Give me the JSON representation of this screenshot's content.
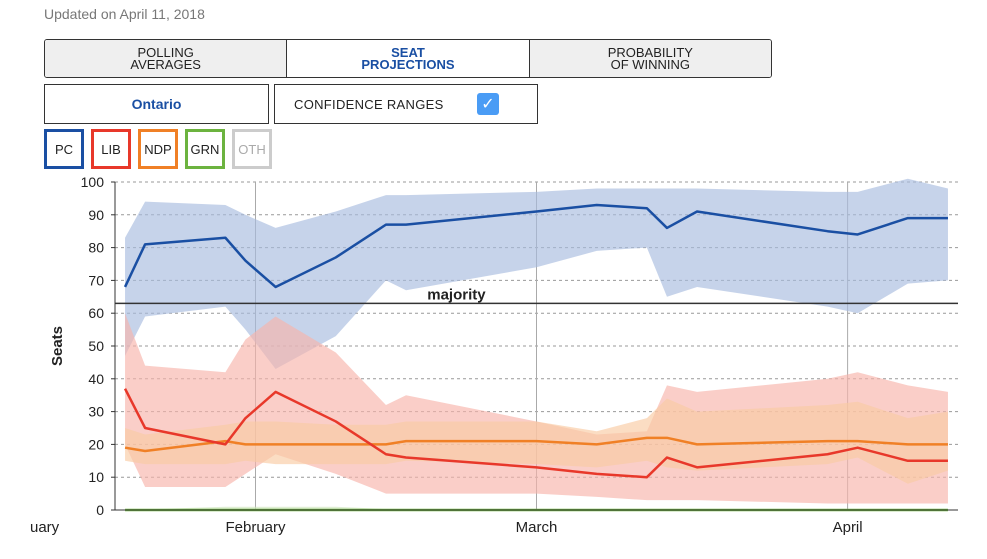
{
  "header": {
    "updated": "Updated on April 11, 2018"
  },
  "tabs": [
    {
      "label": "POLLING\nAVERAGES",
      "active": false
    },
    {
      "label": "SEAT\nPROJECTIONS",
      "active": true
    },
    {
      "label": "PROBABILITY\nOF WINNING",
      "active": false
    }
  ],
  "controls": {
    "region": "Ontario",
    "confidence_label": "CONFIDENCE RANGES",
    "confidence_checked": true
  },
  "parties": [
    {
      "code": "PC",
      "color": "#1a4fa3",
      "enabled": true
    },
    {
      "code": "LIB",
      "color": "#e8382a",
      "enabled": true
    },
    {
      "code": "NDP",
      "color": "#f08026",
      "enabled": true
    },
    {
      "code": "GRN",
      "color": "#6cb33f",
      "enabled": true
    },
    {
      "code": "OTH",
      "color": "#cccccc",
      "enabled": false
    }
  ],
  "chart_data": {
    "type": "line",
    "ylabel": "Seats",
    "ylim": [
      0,
      100
    ],
    "yticks": [
      0,
      10,
      20,
      30,
      40,
      50,
      60,
      70,
      80,
      90,
      100
    ],
    "xlim": [
      "2018-01-18",
      "2018-04-12"
    ],
    "month_labels": [
      {
        "label": "uary",
        "date": "2018-01-18"
      },
      {
        "label": "February",
        "date": "2018-02-01"
      },
      {
        "label": "March",
        "date": "2018-03-01"
      },
      {
        "label": "April",
        "date": "2018-04-01"
      }
    ],
    "reference_line": {
      "label": "majority",
      "value": 63
    },
    "series": [
      {
        "name": "PC",
        "color": "#1a4fa3",
        "band_color": "#a7bcdf",
        "x": [
          "2018-01-19",
          "2018-01-21",
          "2018-01-29",
          "2018-01-31",
          "2018-02-03",
          "2018-02-09",
          "2018-02-14",
          "2018-02-16",
          "2018-03-01",
          "2018-03-07",
          "2018-03-12",
          "2018-03-14",
          "2018-03-17",
          "2018-03-30",
          "2018-04-02",
          "2018-04-07",
          "2018-04-11"
        ],
        "y": [
          68,
          81,
          83,
          76,
          68,
          77,
          87,
          87,
          91,
          93,
          92,
          86,
          91,
          85,
          84,
          89,
          89
        ],
        "low": [
          47,
          59,
          62,
          55,
          43,
          53,
          70,
          67,
          74,
          79,
          80,
          65,
          68,
          62,
          60,
          69,
          70
        ],
        "high": [
          83,
          94,
          93,
          90,
          86,
          91,
          96,
          96,
          97,
          98,
          98,
          98,
          98,
          97,
          97,
          101,
          98
        ]
      },
      {
        "name": "LIB",
        "color": "#e8382a",
        "band_color": "#f7b3ab",
        "x": [
          "2018-01-19",
          "2018-01-21",
          "2018-01-29",
          "2018-01-31",
          "2018-02-03",
          "2018-02-09",
          "2018-02-14",
          "2018-02-16",
          "2018-03-01",
          "2018-03-07",
          "2018-03-12",
          "2018-03-14",
          "2018-03-17",
          "2018-03-30",
          "2018-04-02",
          "2018-04-07",
          "2018-04-11"
        ],
        "y": [
          37,
          25,
          20,
          28,
          36,
          27,
          17,
          16,
          13,
          11,
          10,
          16,
          13,
          17,
          19,
          15,
          15
        ],
        "low": [
          20,
          7,
          7,
          11,
          17,
          11,
          5,
          5,
          5,
          4,
          3,
          3,
          3,
          2,
          2,
          2,
          2
        ],
        "high": [
          60,
          44,
          42,
          52,
          59,
          48,
          32,
          35,
          27,
          23,
          24,
          38,
          36,
          40,
          42,
          38,
          36
        ]
      },
      {
        "name": "NDP",
        "color": "#f08026",
        "band_color": "#f9cba3",
        "x": [
          "2018-01-19",
          "2018-01-21",
          "2018-01-29",
          "2018-01-31",
          "2018-02-03",
          "2018-02-09",
          "2018-02-14",
          "2018-02-16",
          "2018-03-01",
          "2018-03-07",
          "2018-03-12",
          "2018-03-14",
          "2018-03-17",
          "2018-03-30",
          "2018-04-02",
          "2018-04-07",
          "2018-04-11"
        ],
        "y": [
          19,
          18,
          21,
          20,
          20,
          20,
          20,
          21,
          21,
          20,
          22,
          22,
          20,
          21,
          21,
          20,
          20
        ],
        "low": [
          15,
          14,
          14,
          15,
          14,
          14,
          14,
          15,
          14,
          13,
          15,
          13,
          12,
          14,
          16,
          8,
          12
        ],
        "high": [
          25,
          23,
          26,
          27,
          27,
          26,
          26,
          27,
          27,
          24,
          28,
          34,
          30,
          32,
          33,
          28,
          30
        ]
      },
      {
        "name": "GRN",
        "color": "#6cb33f",
        "band_color": "#cfe6bf",
        "x": [
          "2018-01-19",
          "2018-01-29",
          "2018-02-09",
          "2018-02-16",
          "2018-03-01",
          "2018-03-12",
          "2018-03-30",
          "2018-04-11"
        ],
        "y": [
          0,
          0,
          0,
          0,
          0,
          0,
          0,
          0
        ],
        "low": [
          0,
          0,
          0,
          0,
          0,
          0,
          0,
          0
        ],
        "high": [
          0,
          1,
          1,
          0,
          0,
          0,
          0,
          0
        ]
      }
    ]
  }
}
